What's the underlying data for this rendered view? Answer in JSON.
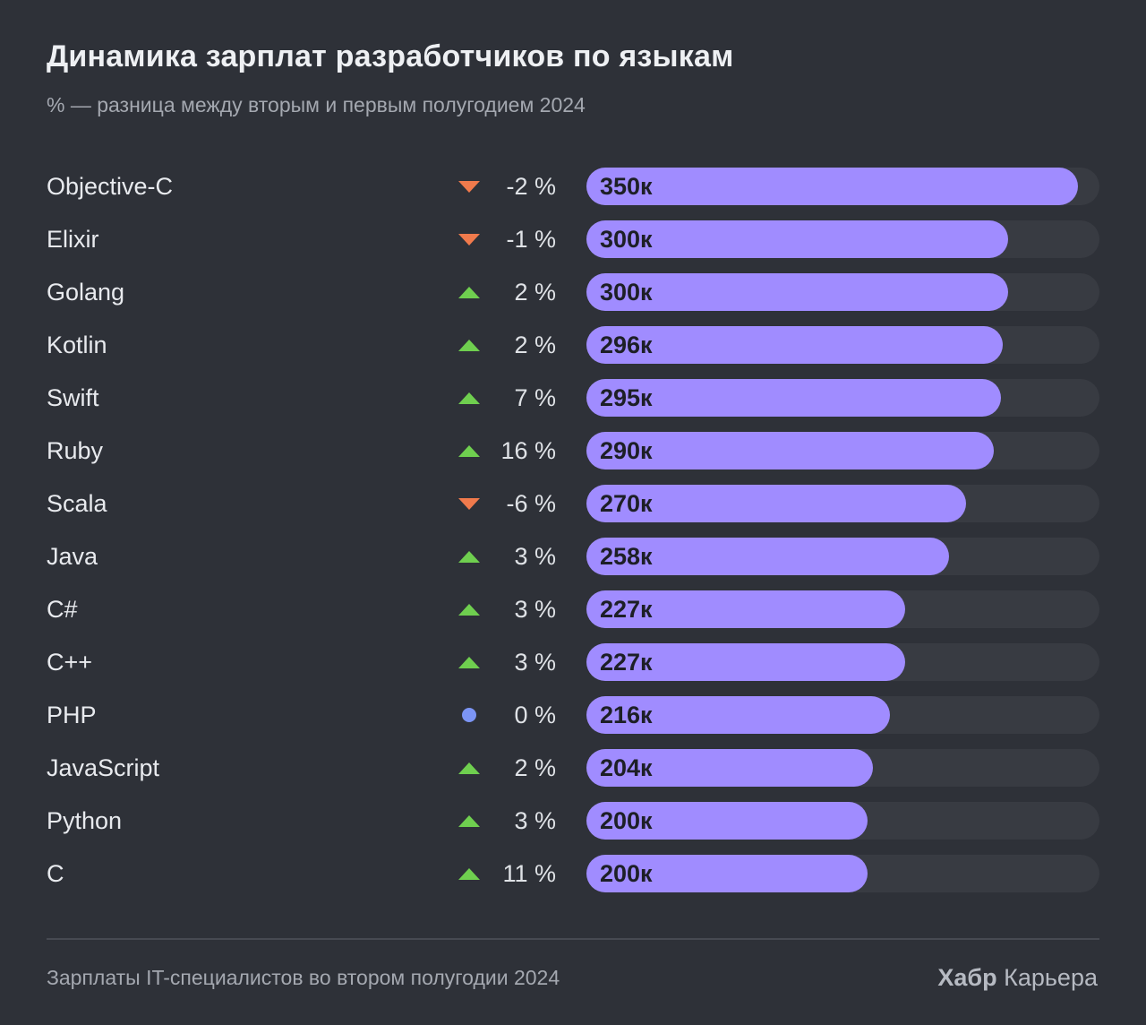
{
  "title": "Динамика зарплат разработчиков по языкам",
  "subtitle": "% — разница между вторым и первым полугодием 2024",
  "footer": {
    "source": "Зарплаты IT-специалистов во втором полугодии 2024",
    "brand_bold": "Хабр",
    "brand_regular": "Карьера"
  },
  "colors": {
    "bar": "#a08cff",
    "track": "#383b42",
    "up": "#6fcf4f",
    "down": "#f07a4c",
    "neutral": "#7c95f5"
  },
  "chart_data": {
    "type": "bar",
    "orientation": "horizontal",
    "categories": [
      "Objective-C",
      "Elixir",
      "Golang",
      "Kotlin",
      "Swift",
      "Ruby",
      "Scala",
      "Java",
      "C#",
      "C++",
      "PHP",
      "JavaScript",
      "Python",
      "C"
    ],
    "values": [
      350,
      300,
      300,
      296,
      295,
      290,
      270,
      258,
      227,
      227,
      216,
      204,
      200,
      200
    ],
    "value_labels": [
      "350к",
      "300к",
      "300к",
      "296к",
      "295к",
      "290к",
      "270к",
      "258к",
      "227к",
      "227к",
      "216к",
      "204к",
      "200к",
      "200к"
    ],
    "change_percent": [
      -2,
      -1,
      2,
      2,
      7,
      16,
      -6,
      3,
      3,
      3,
      0,
      2,
      3,
      11
    ],
    "change_labels": [
      "-2 %",
      "-1 %",
      "2 %",
      "2 %",
      "7 %",
      "16 %",
      "-6 %",
      "3 %",
      "3 %",
      "3 %",
      "0 %",
      "2 %",
      "3 %",
      "11 %"
    ],
    "trend": [
      "down",
      "down",
      "up",
      "up",
      "up",
      "up",
      "down",
      "up",
      "up",
      "up",
      "neutral",
      "up",
      "up",
      "up"
    ],
    "xlim": [
      0,
      365
    ]
  }
}
